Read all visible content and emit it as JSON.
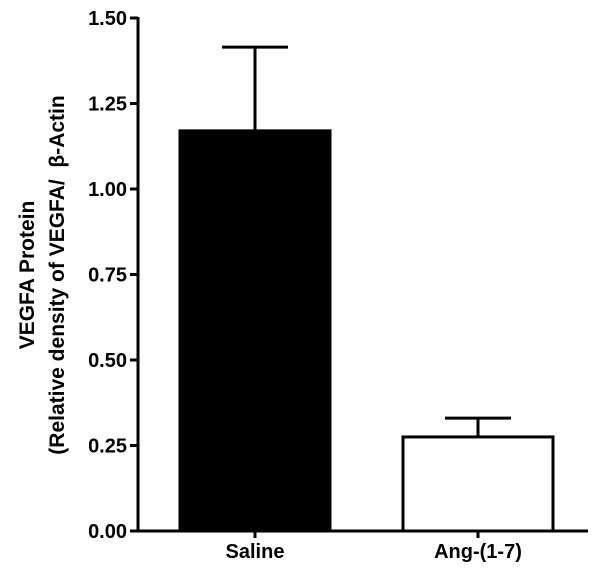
{
  "chart_data": {
    "type": "bar",
    "title": "",
    "xlabel": "",
    "ylabel_line1": "VEGFA Protein",
    "ylabel_line2": "(Relative density of VEGFA/  β-Actin",
    "categories": [
      "Saline",
      "Ang-(1-7)"
    ],
    "values": [
      1.17,
      0.275
    ],
    "error_upper": [
      0.245,
      0.055
    ],
    "ylim": [
      0,
      1.5
    ],
    "yticks": [
      0.0,
      0.25,
      0.5,
      0.75,
      1.0,
      1.25,
      1.5
    ],
    "ytick_labels": [
      "0.00",
      "0.25",
      "0.50",
      "0.75",
      "1.00",
      "1.25",
      "1.50"
    ],
    "bar_fill": [
      "#000000",
      "#ffffff"
    ],
    "bar_stroke": "#000000",
    "grid": false,
    "legend": "none"
  }
}
